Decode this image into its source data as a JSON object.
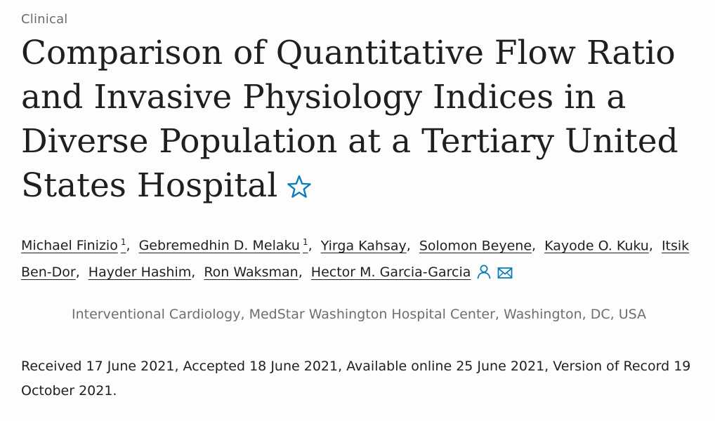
{
  "category": "Clinical",
  "title": "Comparison of Quantitative Flow Ratio and Invasive Physiology Indices in a Diverse Population at a Tertiary United States Hospital",
  "authors": [
    {
      "name": "Michael Finizio",
      "sup": "1"
    },
    {
      "name": "Gebremedhin D. Melaku",
      "sup": "1"
    },
    {
      "name": "Yirga Kahsay",
      "sup": ""
    },
    {
      "name": "Solomon Beyene",
      "sup": ""
    },
    {
      "name": "Kayode O. Kuku",
      "sup": ""
    },
    {
      "name": "Itsik Ben-Dor",
      "sup": ""
    },
    {
      "name": "Hayder Hashim",
      "sup": ""
    },
    {
      "name": "Ron Waksman",
      "sup": ""
    },
    {
      "name": "Hector M. Garcia-Garcia",
      "sup": ""
    }
  ],
  "icons": {
    "star": "star-icon",
    "person": "person-icon",
    "email": "envelope-icon",
    "accent": "#0c7dbb"
  },
  "affiliation": "Interventional Cardiology, MedStar Washington Hospital Center, Washington, DC, USA",
  "dates": "Received 17 June 2021, Accepted 18 June 2021, Available online 25 June 2021, Version of Record 19 October 2021."
}
